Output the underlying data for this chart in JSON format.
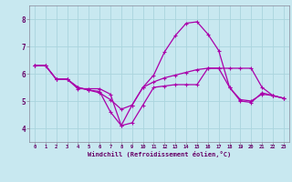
{
  "background_color": "#c8e8f0",
  "line_color": "#aa00aa",
  "grid_color": "#aad4dd",
  "xlabel": "Windchill (Refroidissement éolien,°C)",
  "xlabel_color": "#660066",
  "tick_color": "#660066",
  "xlim": [
    -0.5,
    23.5
  ],
  "ylim": [
    3.5,
    8.5
  ],
  "yticks": [
    4,
    5,
    6,
    7,
    8
  ],
  "xticks": [
    0,
    1,
    2,
    3,
    4,
    5,
    6,
    7,
    8,
    9,
    10,
    11,
    12,
    13,
    14,
    15,
    16,
    17,
    18,
    19,
    20,
    21,
    22,
    23
  ],
  "line1_x": [
    0,
    1,
    2,
    3,
    4,
    5,
    6,
    7,
    8,
    9,
    10,
    11,
    12,
    13,
    14,
    15,
    16,
    17,
    18,
    19,
    20,
    21,
    22,
    23
  ],
  "line1_y": [
    6.3,
    6.3,
    5.8,
    5.8,
    5.45,
    5.45,
    5.45,
    5.25,
    4.1,
    4.2,
    4.85,
    5.5,
    5.55,
    5.6,
    5.6,
    5.6,
    6.2,
    6.2,
    6.2,
    6.2,
    6.2,
    5.5,
    5.2,
    5.1
  ],
  "line2_x": [
    0,
    1,
    2,
    3,
    4,
    5,
    6,
    7,
    8,
    9,
    10,
    11,
    12,
    13,
    14,
    15,
    16,
    17,
    18,
    19,
    20,
    21,
    22,
    23
  ],
  "line2_y": [
    6.3,
    6.3,
    5.8,
    5.8,
    5.5,
    5.4,
    5.35,
    4.6,
    4.1,
    4.85,
    5.5,
    5.95,
    6.8,
    7.4,
    7.85,
    7.9,
    7.45,
    6.85,
    5.5,
    5.0,
    4.95,
    5.3,
    5.2,
    5.1
  ],
  "line3_x": [
    0,
    1,
    2,
    3,
    4,
    5,
    6,
    7,
    8,
    9,
    10,
    11,
    12,
    13,
    14,
    15,
    16,
    17,
    18,
    19,
    20,
    21,
    22,
    23
  ],
  "line3_y": [
    6.3,
    6.3,
    5.8,
    5.8,
    5.5,
    5.4,
    5.3,
    5.05,
    4.7,
    4.85,
    5.5,
    5.7,
    5.85,
    5.95,
    6.05,
    6.15,
    6.2,
    6.2,
    5.5,
    5.05,
    5.0,
    5.25,
    5.2,
    5.1
  ]
}
